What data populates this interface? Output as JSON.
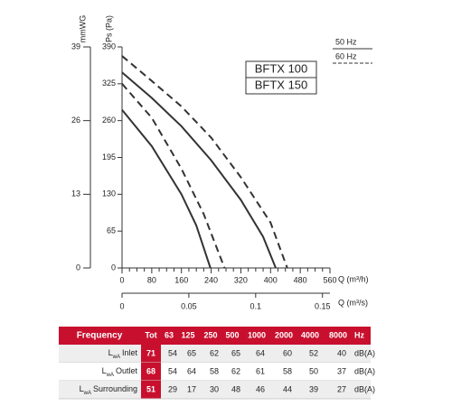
{
  "chart_data": {
    "type": "line",
    "y_label": "Ps (Pa)",
    "ylim": [
      0,
      390
    ],
    "yticks": [
      0,
      65,
      130,
      195,
      260,
      325,
      390
    ],
    "y2_label": "mmWG",
    "y2lim": [
      0,
      39
    ],
    "y2ticks": [
      0,
      13,
      26,
      39
    ],
    "x_label": "Q (m³/h)",
    "xlim": [
      0,
      560
    ],
    "xticks": [
      0,
      80,
      160,
      240,
      320,
      400,
      480,
      560
    ],
    "x2_label": "Q (m³/s)",
    "x2lim": [
      0,
      0.1556
    ],
    "x2ticks": [
      0,
      0.05,
      0.1,
      0.15
    ],
    "color": "#333333",
    "line_styles": [
      {
        "label": "50 Hz",
        "dashed": false
      },
      {
        "label": "60 Hz",
        "dashed": true
      }
    ],
    "models": [
      {
        "label": "BFTX 100",
        "curves": [
          {
            "x": [
              0,
              80,
              160,
              200,
              238
            ],
            "values": [
              279,
              215,
              130,
              75,
              0
            ]
          },
          {
            "x": [
              0,
              80,
              160,
              220,
              276
            ],
            "values": [
              325,
              265,
              175,
              95,
              0
            ]
          }
        ]
      },
      {
        "label": "BFTX 150",
        "curves": [
          {
            "x": [
              0,
              80,
              160,
              240,
              320,
              380,
              414
            ],
            "values": [
              345,
              300,
              250,
              190,
              120,
              55,
              0
            ]
          },
          {
            "x": [
              0,
              80,
              160,
              240,
              320,
              400,
              445
            ],
            "values": [
              374,
              330,
              285,
              230,
              160,
              80,
              0
            ]
          }
        ]
      }
    ]
  },
  "table": {
    "header": [
      "Frequency",
      "Tot",
      63,
      125,
      250,
      500,
      1000,
      2000,
      4000,
      8000,
      "Hz"
    ],
    "rows": [
      {
        "symbol": "L",
        "subscript": "wA",
        "label": "Inlet",
        "tot": 71,
        "values": [
          54,
          65,
          62,
          65,
          64,
          60,
          52,
          40
        ],
        "unit": "dB(A)"
      },
      {
        "symbol": "L",
        "subscript": "wA",
        "label": "Outlet",
        "tot": 68,
        "values": [
          54,
          64,
          58,
          62,
          61,
          58,
          50,
          37
        ],
        "unit": "dB(A)"
      },
      {
        "symbol": "L",
        "subscript": "wA",
        "label": "Surrounding",
        "tot": 51,
        "values": [
          29,
          17,
          30,
          48,
          46,
          44,
          39,
          27
        ],
        "unit": "dB(A)"
      }
    ]
  }
}
